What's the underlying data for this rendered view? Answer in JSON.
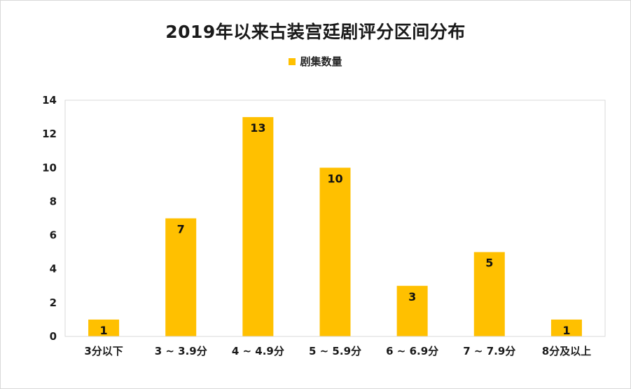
{
  "chart_data": {
    "type": "bar",
    "title": "2019年以来古装宫廷剧评分区间分布",
    "categories": [
      "3分以下",
      "3 ~ 3.9分",
      "4 ~ 4.9分",
      "5 ~ 5.9分",
      "6 ~ 6.9分",
      "7 ~ 7.9分",
      "8分及以上"
    ],
    "series": [
      {
        "name": "剧集数量",
        "values": [
          1,
          7,
          13,
          10,
          3,
          5,
          1
        ],
        "color": "#ffc000"
      }
    ],
    "ylim": [
      0,
      14
    ],
    "yticks": [
      0,
      2,
      4,
      6,
      8,
      10,
      12,
      14
    ],
    "xlabel": "",
    "ylabel": "",
    "grid": false,
    "legend_position": "top-center",
    "data_labels": true
  }
}
